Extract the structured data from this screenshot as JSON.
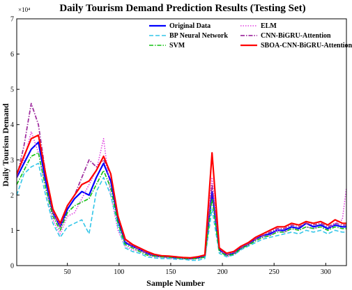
{
  "chart_data": {
    "type": "line",
    "title": "Daily Tourism Demand Prediction Results (Testing Set)",
    "xlabel": "Sample Number",
    "ylabel": "Daily Tourism Demand",
    "y_multiplier_label": "×10⁴",
    "xlim": [
      1,
      320
    ],
    "ylim": [
      0,
      7
    ],
    "xticks": [
      50,
      100,
      150,
      200,
      250,
      300
    ],
    "yticks": [
      0,
      1,
      2,
      3,
      4,
      5,
      6,
      7
    ],
    "grid": false,
    "legend_position": "top-right",
    "x": [
      1,
      8,
      15,
      22,
      29,
      36,
      43,
      50,
      57,
      64,
      71,
      78,
      85,
      92,
      99,
      106,
      113,
      120,
      127,
      134,
      141,
      148,
      155,
      162,
      169,
      176,
      183,
      190,
      197,
      204,
      211,
      218,
      225,
      232,
      239,
      246,
      253,
      260,
      267,
      274,
      281,
      288,
      295,
      302,
      309,
      316,
      320
    ],
    "series": [
      {
        "name": "Original Data",
        "color": "#0000ff",
        "style": "solid",
        "width": 2.2,
        "values": [
          2.5,
          2.9,
          3.3,
          3.5,
          2.4,
          1.5,
          1.1,
          1.6,
          1.9,
          2.1,
          2.0,
          2.5,
          2.9,
          2.4,
          1.3,
          0.65,
          0.55,
          0.45,
          0.35,
          0.28,
          0.25,
          0.25,
          0.22,
          0.2,
          0.2,
          0.22,
          0.25,
          2.1,
          0.45,
          0.3,
          0.35,
          0.5,
          0.6,
          0.75,
          0.85,
          0.9,
          1.0,
          1.0,
          1.1,
          1.05,
          1.2,
          1.1,
          1.15,
          1.05,
          1.15,
          1.1,
          1.1
        ]
      },
      {
        "name": "ELM",
        "color": "#e040e0",
        "style": "dotted",
        "width": 1.6,
        "values": [
          2.6,
          3.0,
          3.8,
          3.2,
          2.2,
          1.3,
          0.9,
          1.4,
          1.5,
          1.9,
          2.3,
          2.7,
          3.6,
          2.0,
          1.0,
          0.55,
          0.45,
          0.4,
          0.3,
          0.25,
          0.25,
          0.2,
          0.2,
          0.2,
          0.18,
          0.2,
          0.25,
          2.5,
          0.5,
          0.25,
          0.3,
          0.45,
          0.6,
          0.7,
          0.8,
          0.85,
          1.0,
          0.95,
          1.05,
          1.0,
          1.1,
          1.05,
          1.1,
          1.0,
          1.2,
          1.3,
          2.2
        ]
      },
      {
        "name": "BP Neural Network",
        "color": "#33c6e8",
        "style": "dashed",
        "width": 1.6,
        "values": [
          2.0,
          2.6,
          2.8,
          2.9,
          2.0,
          1.2,
          0.8,
          1.1,
          1.2,
          1.3,
          0.9,
          2.1,
          2.5,
          2.0,
          1.1,
          0.5,
          0.4,
          0.35,
          0.25,
          0.22,
          0.2,
          0.2,
          0.18,
          0.18,
          0.15,
          0.15,
          0.2,
          1.6,
          0.35,
          0.25,
          0.3,
          0.45,
          0.55,
          0.65,
          0.75,
          0.8,
          0.85,
          0.9,
          0.95,
          0.9,
          1.0,
          0.95,
          1.0,
          0.9,
          1.0,
          0.95,
          0.95
        ]
      },
      {
        "name": "CNN-BiGRU-Attention",
        "color": "#a030a0",
        "style": "dashdot",
        "width": 1.8,
        "values": [
          2.5,
          3.4,
          4.6,
          4.0,
          2.6,
          1.5,
          1.1,
          1.7,
          2.0,
          2.5,
          3.0,
          2.8,
          3.0,
          2.6,
          1.4,
          0.7,
          0.55,
          0.45,
          0.35,
          0.3,
          0.28,
          0.25,
          0.25,
          0.22,
          0.22,
          0.25,
          0.28,
          2.3,
          0.5,
          0.3,
          0.35,
          0.5,
          0.6,
          0.75,
          0.85,
          0.95,
          1.05,
          1.05,
          1.15,
          1.1,
          1.2,
          1.15,
          1.2,
          1.1,
          1.2,
          1.15,
          1.15
        ]
      },
      {
        "name": "SVM",
        "color": "#10c010",
        "style": "dashdot",
        "width": 1.6,
        "values": [
          2.3,
          2.7,
          3.1,
          3.2,
          2.2,
          1.4,
          1.0,
          1.5,
          1.7,
          1.8,
          1.9,
          2.3,
          2.7,
          2.2,
          1.2,
          0.6,
          0.5,
          0.4,
          0.3,
          0.27,
          0.25,
          0.24,
          0.22,
          0.2,
          0.2,
          0.2,
          0.24,
          1.9,
          0.4,
          0.28,
          0.32,
          0.48,
          0.58,
          0.7,
          0.8,
          0.85,
          0.95,
          0.95,
          1.05,
          1.0,
          1.1,
          1.05,
          1.1,
          1.0,
          1.1,
          1.05,
          1.05
        ]
      },
      {
        "name": "SBOA-CNN-BiGRU-Attention",
        "color": "#ff0000",
        "style": "solid",
        "width": 2.2,
        "values": [
          2.6,
          3.1,
          3.6,
          3.7,
          2.6,
          1.6,
          1.2,
          1.7,
          2.0,
          2.3,
          2.4,
          2.7,
          3.1,
          2.6,
          1.4,
          0.75,
          0.6,
          0.5,
          0.4,
          0.32,
          0.28,
          0.27,
          0.25,
          0.23,
          0.22,
          0.25,
          0.3,
          3.2,
          0.5,
          0.35,
          0.4,
          0.55,
          0.65,
          0.8,
          0.9,
          1.0,
          1.1,
          1.1,
          1.2,
          1.15,
          1.25,
          1.2,
          1.25,
          1.15,
          1.3,
          1.2,
          1.2
        ]
      }
    ]
  }
}
